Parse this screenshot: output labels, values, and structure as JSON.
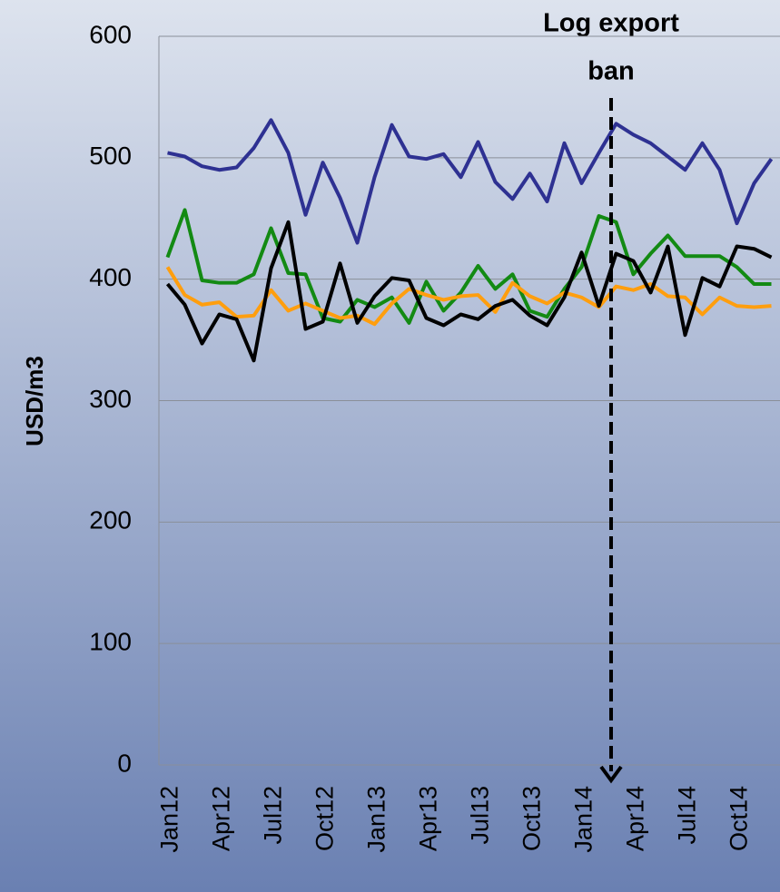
{
  "chart_data": {
    "type": "line",
    "annotation": [
      "Log export",
      "ban"
    ],
    "ylabel": "USD/m3",
    "categories": [
      "Jan12",
      null,
      null,
      "Apr12",
      null,
      null,
      "Jul12",
      null,
      null,
      "Oct12",
      null,
      null,
      "Jan13",
      null,
      null,
      "Apr13",
      null,
      null,
      "Jul13",
      null,
      null,
      "Oct13",
      null,
      null,
      "Jan14",
      null,
      null,
      "Apr14",
      null,
      null,
      "Jul14",
      null,
      null,
      "Oct14",
      null,
      null
    ],
    "series": [
      {
        "color": "#2e3192",
        "values": [
          504,
          501,
          493,
          490,
          492,
          508,
          531,
          504,
          453,
          496,
          467,
          430,
          484,
          527,
          501,
          499,
          503,
          484,
          513,
          480,
          466,
          487,
          464,
          512,
          479,
          504,
          528,
          519,
          512,
          501,
          490,
          512,
          490,
          446,
          479,
          499
        ]
      },
      {
        "color": "#138a13",
        "values": [
          418,
          457,
          399,
          397,
          397,
          404,
          442,
          405,
          404,
          368,
          365,
          383,
          377,
          385,
          364,
          398,
          374,
          389,
          411,
          392,
          404,
          374,
          369,
          392,
          410,
          452,
          447,
          404,
          421,
          436,
          419,
          419,
          419,
          410,
          396,
          396
        ]
      },
      {
        "color": "#ff9e0e",
        "values": [
          410,
          387,
          379,
          381,
          369,
          370,
          391,
          374,
          380,
          374,
          368,
          370,
          363,
          380,
          392,
          387,
          383,
          386,
          387,
          373,
          397,
          386,
          380,
          389,
          385,
          377,
          394,
          391,
          396,
          386,
          385,
          371,
          385,
          378,
          377,
          378
        ]
      },
      {
        "color": "#000000",
        "values": [
          396,
          379,
          347,
          371,
          367,
          333,
          409,
          447,
          359,
          365,
          413,
          364,
          386,
          401,
          399,
          368,
          362,
          371,
          367,
          378,
          383,
          370,
          362,
          385,
          422,
          378,
          421,
          415,
          389,
          427,
          354,
          401,
          394,
          427,
          425,
          418
        ]
      }
    ],
    "ylim": [
      0,
      600
    ],
    "yticks": [
      0,
      100,
      200,
      300,
      400,
      500,
      600
    ],
    "grid": true
  }
}
